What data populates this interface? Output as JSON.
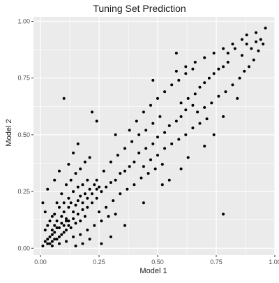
{
  "chart_data": {
    "type": "scatter",
    "title": "Tuning Set Prediction",
    "xlabel": "Model 1",
    "ylabel": "Model 2",
    "xlim": [
      -0.03,
      1.0
    ],
    "ylim": [
      -0.03,
      1.02
    ],
    "x_ticks": [
      0.0,
      0.25,
      0.5,
      0.75,
      1.0
    ],
    "x_tick_labels": [
      "0.00",
      "0.25",
      "0.50",
      "0.75",
      "1.00"
    ],
    "y_ticks": [
      0.0,
      0.25,
      0.5,
      0.75,
      1.0
    ],
    "y_tick_labels": [
      "0.00",
      "0.25",
      "0.50",
      "0.75",
      "1.00"
    ],
    "grid": true,
    "panel_background": "#ebebeb",
    "grid_color": "#ffffff",
    "point_color": "#000000",
    "points": [
      [
        0.01,
        0.01
      ],
      [
        0.02,
        0.03
      ],
      [
        0.03,
        0.02
      ],
      [
        0.04,
        0.05
      ],
      [
        0.05,
        0.03
      ],
      [
        0.06,
        0.07
      ],
      [
        0.07,
        0.04
      ],
      [
        0.08,
        0.09
      ],
      [
        0.09,
        0.06
      ],
      [
        0.1,
        0.1
      ],
      [
        0.11,
        0.08
      ],
      [
        0.12,
        0.12
      ],
      [
        0.13,
        0.09
      ],
      [
        0.14,
        0.13
      ],
      [
        0.15,
        0.11
      ],
      [
        0.16,
        0.15
      ],
      [
        0.17,
        0.12
      ],
      [
        0.18,
        0.17
      ],
      [
        0.19,
        0.14
      ],
      [
        0.2,
        0.18
      ],
      [
        0.02,
        0.08
      ],
      [
        0.04,
        0.12
      ],
      [
        0.06,
        0.15
      ],
      [
        0.08,
        0.18
      ],
      [
        0.1,
        0.2
      ],
      [
        0.12,
        0.22
      ],
      [
        0.14,
        0.25
      ],
      [
        0.16,
        0.27
      ],
      [
        0.18,
        0.28
      ],
      [
        0.2,
        0.3
      ],
      [
        0.05,
        0.01
      ],
      [
        0.08,
        0.02
      ],
      [
        0.11,
        0.03
      ],
      [
        0.14,
        0.05
      ],
      [
        0.17,
        0.06
      ],
      [
        0.2,
        0.08
      ],
      [
        0.23,
        0.1
      ],
      [
        0.26,
        0.12
      ],
      [
        0.29,
        0.14
      ],
      [
        0.32,
        0.15
      ],
      [
        0.03,
        0.1
      ],
      [
        0.05,
        0.14
      ],
      [
        0.07,
        0.2
      ],
      [
        0.09,
        0.24
      ],
      [
        0.11,
        0.28
      ],
      [
        0.13,
        0.3
      ],
      [
        0.15,
        0.33
      ],
      [
        0.17,
        0.35
      ],
      [
        0.19,
        0.38
      ],
      [
        0.21,
        0.4
      ],
      [
        0.22,
        0.2
      ],
      [
        0.24,
        0.22
      ],
      [
        0.26,
        0.25
      ],
      [
        0.28,
        0.27
      ],
      [
        0.3,
        0.29
      ],
      [
        0.32,
        0.3
      ],
      [
        0.34,
        0.33
      ],
      [
        0.36,
        0.34
      ],
      [
        0.38,
        0.36
      ],
      [
        0.4,
        0.38
      ],
      [
        0.25,
        0.16
      ],
      [
        0.28,
        0.18
      ],
      [
        0.31,
        0.21
      ],
      [
        0.34,
        0.24
      ],
      [
        0.37,
        0.26
      ],
      [
        0.4,
        0.28
      ],
      [
        0.43,
        0.31
      ],
      [
        0.46,
        0.33
      ],
      [
        0.49,
        0.35
      ],
      [
        0.52,
        0.37
      ],
      [
        0.24,
        0.3
      ],
      [
        0.27,
        0.34
      ],
      [
        0.3,
        0.38
      ],
      [
        0.33,
        0.41
      ],
      [
        0.36,
        0.44
      ],
      [
        0.39,
        0.47
      ],
      [
        0.42,
        0.5
      ],
      [
        0.45,
        0.52
      ],
      [
        0.48,
        0.55
      ],
      [
        0.51,
        0.58
      ],
      [
        0.42,
        0.42
      ],
      [
        0.45,
        0.44
      ],
      [
        0.48,
        0.46
      ],
      [
        0.5,
        0.49
      ],
      [
        0.53,
        0.51
      ],
      [
        0.55,
        0.54
      ],
      [
        0.58,
        0.56
      ],
      [
        0.6,
        0.58
      ],
      [
        0.62,
        0.61
      ],
      [
        0.65,
        0.63
      ],
      [
        0.44,
        0.36
      ],
      [
        0.47,
        0.39
      ],
      [
        0.5,
        0.41
      ],
      [
        0.53,
        0.44
      ],
      [
        0.56,
        0.46
      ],
      [
        0.59,
        0.48
      ],
      [
        0.62,
        0.5
      ],
      [
        0.65,
        0.53
      ],
      [
        0.68,
        0.55
      ],
      [
        0.71,
        0.57
      ],
      [
        0.38,
        0.52
      ],
      [
        0.41,
        0.56
      ],
      [
        0.44,
        0.6
      ],
      [
        0.47,
        0.63
      ],
      [
        0.5,
        0.66
      ],
      [
        0.53,
        0.69
      ],
      [
        0.56,
        0.72
      ],
      [
        0.59,
        0.74
      ],
      [
        0.62,
        0.77
      ],
      [
        0.65,
        0.79
      ],
      [
        0.6,
        0.64
      ],
      [
        0.63,
        0.66
      ],
      [
        0.66,
        0.68
      ],
      [
        0.68,
        0.71
      ],
      [
        0.7,
        0.73
      ],
      [
        0.72,
        0.75
      ],
      [
        0.74,
        0.77
      ],
      [
        0.76,
        0.79
      ],
      [
        0.78,
        0.8
      ],
      [
        0.8,
        0.82
      ],
      [
        0.67,
        0.6
      ],
      [
        0.7,
        0.62
      ],
      [
        0.73,
        0.64
      ],
      [
        0.76,
        0.67
      ],
      [
        0.79,
        0.69
      ],
      [
        0.82,
        0.72
      ],
      [
        0.85,
        0.75
      ],
      [
        0.87,
        0.78
      ],
      [
        0.89,
        0.8
      ],
      [
        0.91,
        0.83
      ],
      [
        0.58,
        0.78
      ],
      [
        0.62,
        0.8
      ],
      [
        0.66,
        0.82
      ],
      [
        0.7,
        0.84
      ],
      [
        0.74,
        0.86
      ],
      [
        0.78,
        0.88
      ],
      [
        0.82,
        0.9
      ],
      [
        0.86,
        0.92
      ],
      [
        0.88,
        0.94
      ],
      [
        0.92,
        0.95
      ],
      [
        0.8,
        0.86
      ],
      [
        0.83,
        0.88
      ],
      [
        0.86,
        0.85
      ],
      [
        0.88,
        0.9
      ],
      [
        0.9,
        0.88
      ],
      [
        0.92,
        0.91
      ],
      [
        0.94,
        0.92
      ],
      [
        0.95,
        0.9
      ],
      [
        0.96,
        0.97
      ],
      [
        0.93,
        0.87
      ],
      [
        0.1,
        0.66
      ],
      [
        0.58,
        0.86
      ],
      [
        0.78,
        0.15
      ],
      [
        0.24,
        0.56
      ],
      [
        0.32,
        0.5
      ],
      [
        0.16,
        0.46
      ],
      [
        0.48,
        0.74
      ],
      [
        0.22,
        0.6
      ],
      [
        0.36,
        0.1
      ],
      [
        0.44,
        0.2
      ],
      [
        0.3,
        0.05
      ],
      [
        0.26,
        0.02
      ],
      [
        0.52,
        0.28
      ],
      [
        0.55,
        0.3
      ],
      [
        0.6,
        0.35
      ],
      [
        0.63,
        0.4
      ],
      [
        0.7,
        0.45
      ],
      [
        0.74,
        0.5
      ],
      [
        0.78,
        0.58
      ],
      [
        0.84,
        0.66
      ],
      [
        0.15,
        0.01
      ],
      [
        0.18,
        0.02
      ],
      [
        0.21,
        0.04
      ],
      [
        0.02,
        0.16
      ],
      [
        0.01,
        0.2
      ],
      [
        0.03,
        0.26
      ],
      [
        0.06,
        0.3
      ],
      [
        0.08,
        0.34
      ],
      [
        0.12,
        0.37
      ],
      [
        0.14,
        0.42
      ],
      [
        0.05,
        0.06
      ],
      [
        0.06,
        0.1
      ],
      [
        0.07,
        0.12
      ],
      [
        0.09,
        0.14
      ],
      [
        0.1,
        0.16
      ],
      [
        0.11,
        0.13
      ],
      [
        0.12,
        0.18
      ],
      [
        0.13,
        0.2
      ],
      [
        0.14,
        0.16
      ],
      [
        0.15,
        0.19
      ],
      [
        0.16,
        0.21
      ],
      [
        0.17,
        0.23
      ],
      [
        0.18,
        0.2
      ],
      [
        0.19,
        0.24
      ],
      [
        0.2,
        0.22
      ],
      [
        0.21,
        0.26
      ],
      [
        0.22,
        0.24
      ],
      [
        0.23,
        0.28
      ],
      [
        0.24,
        0.26
      ],
      [
        0.25,
        0.27
      ],
      [
        0.03,
        0.04
      ],
      [
        0.04,
        0.02
      ],
      [
        0.05,
        0.08
      ],
      [
        0.06,
        0.04
      ],
      [
        0.07,
        0.09
      ],
      [
        0.08,
        0.05
      ],
      [
        0.09,
        0.11
      ],
      [
        0.1,
        0.07
      ],
      [
        0.11,
        0.12
      ],
      [
        0.12,
        0.1
      ]
    ]
  }
}
